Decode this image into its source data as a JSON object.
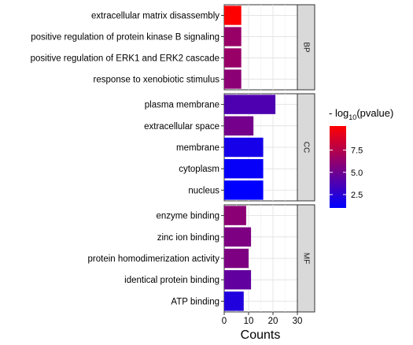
{
  "chart_data": {
    "type": "bar",
    "orientation": "horizontal",
    "xlabel": "Counts",
    "xlim": [
      0,
      30
    ],
    "xticks": [
      0,
      10,
      20,
      30
    ],
    "grid": true,
    "legend_placement": "right",
    "color_scale": {
      "title_prefix": "- log",
      "title_subscript": "10",
      "title_suffix": "(pvalue)",
      "min": 1,
      "max": 10.2,
      "low_color": "#0000ff",
      "high_color": "#ff0000",
      "ticks": [
        {
          "value": 7.5,
          "label": "7.5"
        },
        {
          "value": 5.0,
          "label": "5.0"
        },
        {
          "value": 2.5,
          "label": "2.5"
        }
      ]
    },
    "panels": [
      {
        "strip": "BP",
        "bars": [
          {
            "label": "extracellular matrix disassembly",
            "count": 7,
            "neglog10p": 10.2
          },
          {
            "label": "positive regulation of protein kinase B signaling",
            "count": 7,
            "neglog10p": 6.5
          },
          {
            "label": "positive regulation of ERK1 and ERK2 cascade",
            "count": 7,
            "neglog10p": 6.5
          },
          {
            "label": "response to xenobiotic stimulus",
            "count": 7,
            "neglog10p": 6.0
          }
        ]
      },
      {
        "strip": "CC",
        "bars": [
          {
            "label": "plasma membrane",
            "count": 21,
            "neglog10p": 3.8
          },
          {
            "label": "extracellular space",
            "count": 12,
            "neglog10p": 5.2
          },
          {
            "label": "membrane",
            "count": 16,
            "neglog10p": 1.8
          },
          {
            "label": "cytoplasm",
            "count": 16,
            "neglog10p": 1.2
          },
          {
            "label": "nucleus",
            "count": 16,
            "neglog10p": 1.0
          }
        ]
      },
      {
        "strip": "MF",
        "bars": [
          {
            "label": "enzyme binding",
            "count": 9,
            "neglog10p": 6.0
          },
          {
            "label": "zinc ion binding",
            "count": 11,
            "neglog10p": 5.5
          },
          {
            "label": "protein homodimerization activity",
            "count": 10,
            "neglog10p": 5.5
          },
          {
            "label": "identical protein binding",
            "count": 11,
            "neglog10p": 4.5
          },
          {
            "label": "ATP binding",
            "count": 8,
            "neglog10p": 2.2
          }
        ]
      }
    ]
  }
}
